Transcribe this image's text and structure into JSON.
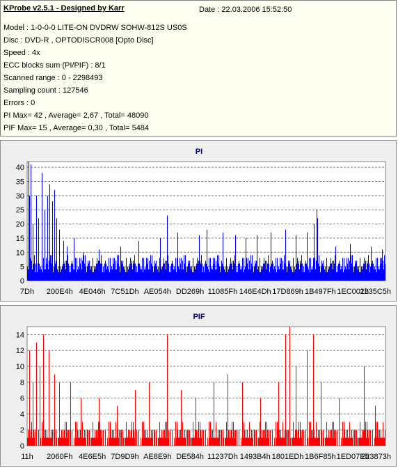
{
  "header": {
    "title": "KProbe v2.5.1 - Designed by Karr",
    "date": "Date : 22.03.2006 15:52:50",
    "lines": [
      "Model : 1-0-0-0 LITE-ON DVDRW SOHW-812S  US0S",
      "Disc : DVD-R , OPTODISCR008 [Opto Disc]",
      "Speed : 4x",
      "ECC blocks sum (PI/PIF) : 8/1",
      "Scanned range : 0 - 2298493",
      "Sampling count : 127546",
      "Errors : 0",
      "PI Max= 42 , Average= 2,67 , Total= 48090",
      "PIF Max= 15 , Average= 0,30 , Total= 5484"
    ]
  },
  "chart_data": [
    {
      "type": "bar",
      "title": "PI",
      "color": "#0000ff",
      "ylim": [
        0,
        42
      ],
      "yticks": [
        0,
        5,
        10,
        15,
        20,
        25,
        30,
        35,
        40
      ],
      "xticks": [
        "7Dh",
        "200E4h",
        "4E046h",
        "7C51Dh",
        "AE054h",
        "DD269h",
        "11085Fh",
        "146E4Dh",
        "17D869h",
        "1B497Fh",
        "1EC001h",
        "2235C5h"
      ],
      "grid": true,
      "baseline_pattern": [
        5,
        7,
        4,
        8,
        3,
        6,
        5,
        9,
        4,
        6,
        7,
        3,
        5,
        8,
        4,
        6
      ],
      "spikes": [
        {
          "x": 0.003,
          "v": 42
        },
        {
          "x": 0.006,
          "v": 30
        },
        {
          "x": 0.01,
          "v": 41
        },
        {
          "x": 0.016,
          "v": 20
        },
        {
          "x": 0.025,
          "v": 30
        },
        {
          "x": 0.032,
          "v": 22
        },
        {
          "x": 0.04,
          "v": 38
        },
        {
          "x": 0.048,
          "v": 25
        },
        {
          "x": 0.056,
          "v": 30
        },
        {
          "x": 0.062,
          "v": 34
        },
        {
          "x": 0.07,
          "v": 28
        },
        {
          "x": 0.075,
          "v": 32
        },
        {
          "x": 0.082,
          "v": 22
        },
        {
          "x": 0.09,
          "v": 18
        },
        {
          "x": 0.1,
          "v": 14
        },
        {
          "x": 0.11,
          "v": 12
        },
        {
          "x": 0.13,
          "v": 15
        },
        {
          "x": 0.155,
          "v": 10
        },
        {
          "x": 0.2,
          "v": 11
        },
        {
          "x": 0.26,
          "v": 12
        },
        {
          "x": 0.31,
          "v": 14
        },
        {
          "x": 0.37,
          "v": 15
        },
        {
          "x": 0.39,
          "v": 23
        },
        {
          "x": 0.42,
          "v": 17
        },
        {
          "x": 0.48,
          "v": 16
        },
        {
          "x": 0.5,
          "v": 18
        },
        {
          "x": 0.545,
          "v": 17
        },
        {
          "x": 0.58,
          "v": 16
        },
        {
          "x": 0.61,
          "v": 15
        },
        {
          "x": 0.64,
          "v": 16
        },
        {
          "x": 0.68,
          "v": 17
        },
        {
          "x": 0.72,
          "v": 18
        },
        {
          "x": 0.75,
          "v": 16
        },
        {
          "x": 0.78,
          "v": 17
        },
        {
          "x": 0.8,
          "v": 20
        },
        {
          "x": 0.807,
          "v": 25
        },
        {
          "x": 0.81,
          "v": 22
        },
        {
          "x": 0.86,
          "v": 12
        },
        {
          "x": 0.9,
          "v": 13
        },
        {
          "x": 0.96,
          "v": 12
        },
        {
          "x": 0.99,
          "v": 11
        }
      ]
    },
    {
      "type": "bar",
      "title": "PIF",
      "color": "#ff0000",
      "ylim": [
        0,
        15
      ],
      "yticks": [
        0,
        2,
        4,
        6,
        8,
        10,
        12,
        14
      ],
      "xticks": [
        "11h",
        "2060Fh",
        "4E6E5h",
        "7D9D9h",
        "AE8E9h",
        "DE584h",
        "11237Dh",
        "1493B4h",
        "1801EDh",
        "1B6F85h",
        "1ED07Eh",
        "223873h"
      ],
      "grid": true,
      "baseline_pattern": [
        1,
        2,
        1,
        3,
        0,
        2,
        1,
        1,
        2,
        0,
        3,
        1,
        2,
        1,
        0,
        2
      ],
      "spikes": [
        {
          "x": 0.005,
          "v": 12
        },
        {
          "x": 0.015,
          "v": 8
        },
        {
          "x": 0.025,
          "v": 13
        },
        {
          "x": 0.035,
          "v": 10
        },
        {
          "x": 0.045,
          "v": 14
        },
        {
          "x": 0.06,
          "v": 12
        },
        {
          "x": 0.075,
          "v": 9
        },
        {
          "x": 0.09,
          "v": 8
        },
        {
          "x": 0.12,
          "v": 8
        },
        {
          "x": 0.15,
          "v": 6
        },
        {
          "x": 0.2,
          "v": 6
        },
        {
          "x": 0.25,
          "v": 5
        },
        {
          "x": 0.3,
          "v": 7
        },
        {
          "x": 0.34,
          "v": 8
        },
        {
          "x": 0.39,
          "v": 14
        },
        {
          "x": 0.43,
          "v": 7
        },
        {
          "x": 0.47,
          "v": 6
        },
        {
          "x": 0.52,
          "v": 8
        },
        {
          "x": 0.56,
          "v": 9
        },
        {
          "x": 0.6,
          "v": 8
        },
        {
          "x": 0.65,
          "v": 6
        },
        {
          "x": 0.7,
          "v": 8
        },
        {
          "x": 0.721,
          "v": 14
        },
        {
          "x": 0.733,
          "v": 15
        },
        {
          "x": 0.75,
          "v": 10
        },
        {
          "x": 0.78,
          "v": 12
        },
        {
          "x": 0.798,
          "v": 14
        },
        {
          "x": 0.82,
          "v": 8
        },
        {
          "x": 0.87,
          "v": 6
        },
        {
          "x": 0.94,
          "v": 10
        },
        {
          "x": 0.97,
          "v": 5
        }
      ]
    }
  ]
}
